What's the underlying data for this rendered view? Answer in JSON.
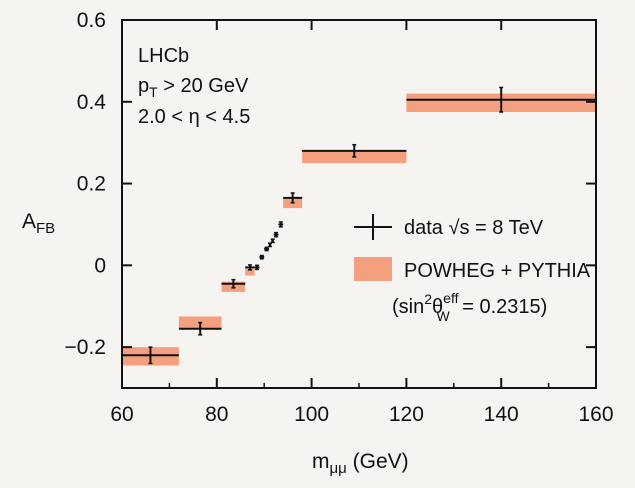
{
  "chart_data": {
    "type": "scatter",
    "xlabel_main": "m",
    "xlabel_sub": "μμ",
    "xlabel_unit": " (GeV)",
    "ylabel_main": "A",
    "ylabel_sub": "FB",
    "xlim": [
      60,
      160
    ],
    "ylim": [
      -0.3,
      0.6
    ],
    "xticks": [
      60,
      80,
      100,
      120,
      140,
      160
    ],
    "xtick_labels": [
      "60",
      "80",
      "100",
      "120",
      "140",
      "160"
    ],
    "yticks": [
      -0.2,
      0,
      0.2,
      0.4,
      0.6
    ],
    "ytick_labels": [
      "−0.2",
      "0",
      "0.2",
      "0.4",
      "0.6"
    ],
    "annotations": {
      "experiment": "LHCb",
      "pt_main": "p",
      "pt_sub": "T",
      "pt_rest": " > 20 GeV",
      "eta_cut": "2.0 < η < 4.5"
    },
    "legend": {
      "data_label": "data",
      "data_sqrt_s": "√s = 8 TeV",
      "model_label": "POWHEG + PYTHIA",
      "model_param_open": "(sin",
      "model_param_sup2": "2",
      "model_param_theta": "θ",
      "model_param_eff": "eff",
      "model_param_W": "W",
      "model_param_value": " = 0.2315)"
    },
    "colors": {
      "prediction": "#f4a07f",
      "data": "#111111",
      "axis": "#111111"
    },
    "data_points": [
      {
        "x": 66,
        "xlo": 60,
        "xhi": 72,
        "y": -0.22,
        "yerr": 0.02
      },
      {
        "x": 76.5,
        "xlo": 72,
        "xhi": 81,
        "y": -0.155,
        "yerr": 0.015
      },
      {
        "x": 83.5,
        "xlo": 81,
        "xhi": 86,
        "y": -0.045,
        "yerr": 0.01
      },
      {
        "x": 87,
        "xlo": 86,
        "xhi": 88,
        "y": -0.005,
        "yerr": 0.006
      },
      {
        "x": 88.5,
        "xlo": 88,
        "xhi": 89,
        "y": -0.005,
        "yerr": 0.005
      },
      {
        "x": 89.5,
        "xlo": 89,
        "xhi": 90,
        "y": 0.02,
        "yerr": 0.004
      },
      {
        "x": 90.5,
        "xlo": 90,
        "xhi": 91,
        "y": 0.04,
        "yerr": 0.004
      },
      {
        "x": 91.2,
        "xlo": 91,
        "xhi": 91.5,
        "y": 0.05,
        "yerr": 0.004
      },
      {
        "x": 91.8,
        "xlo": 91.5,
        "xhi": 92,
        "y": 0.06,
        "yerr": 0.004
      },
      {
        "x": 92.5,
        "xlo": 92,
        "xhi": 93,
        "y": 0.075,
        "yerr": 0.005
      },
      {
        "x": 93.5,
        "xlo": 93,
        "xhi": 94,
        "y": 0.1,
        "yerr": 0.006
      },
      {
        "x": 96,
        "xlo": 94,
        "xhi": 98,
        "y": 0.165,
        "yerr": 0.012
      },
      {
        "x": 109,
        "xlo": 98,
        "xhi": 120,
        "y": 0.28,
        "yerr": 0.015
      },
      {
        "x": 140,
        "xlo": 120,
        "xhi": 160,
        "y": 0.405,
        "yerr": 0.03
      }
    ],
    "prediction_bands": [
      {
        "xlo": 60,
        "xhi": 72,
        "ylo": -0.245,
        "yhi": -0.2
      },
      {
        "xlo": 72,
        "xhi": 81,
        "ylo": -0.155,
        "yhi": -0.125
      },
      {
        "xlo": 81,
        "xhi": 86,
        "ylo": -0.065,
        "yhi": -0.04
      },
      {
        "xlo": 86,
        "xhi": 88,
        "ylo": -0.025,
        "yhi": -0.008
      },
      {
        "xlo": 94,
        "xhi": 98,
        "ylo": 0.14,
        "yhi": 0.165
      },
      {
        "xlo": 98,
        "xhi": 120,
        "ylo": 0.25,
        "yhi": 0.28
      },
      {
        "xlo": 120,
        "xhi": 160,
        "ylo": 0.375,
        "yhi": 0.42
      }
    ]
  }
}
